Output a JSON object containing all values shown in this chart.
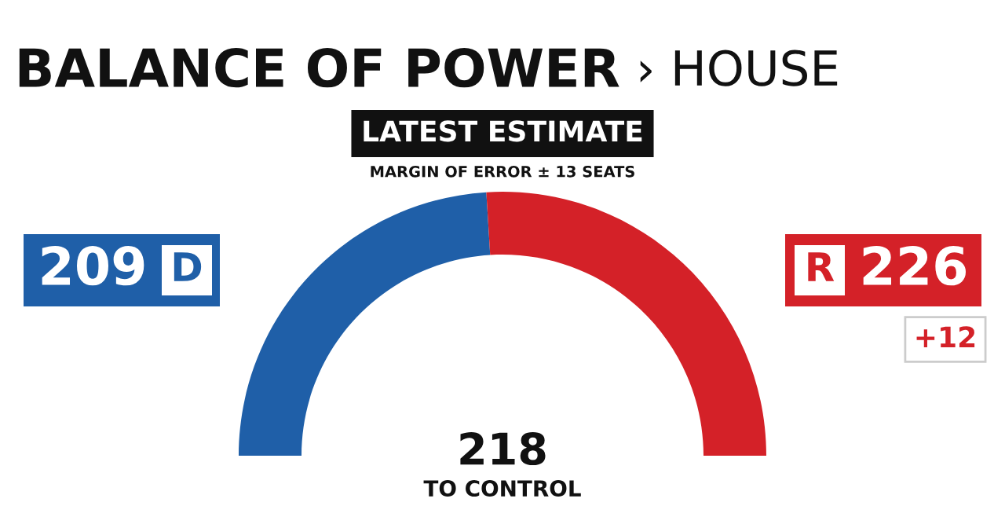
{
  "chart_data": {
    "type": "donut",
    "title": "BALANCE OF POWER",
    "subtitle": "› HOUSE",
    "categories": [
      "D",
      "R"
    ],
    "values": [
      209,
      226
    ],
    "colors": [
      "#1f5fa8",
      "#d42128"
    ],
    "data_labels": true,
    "annotations": [
      "LATEST ESTIMATE",
      "MARGIN OF ERROR ± 13 SEATS",
      "218",
      "TO CONTROL",
      "+12"
    ]
  }
}
